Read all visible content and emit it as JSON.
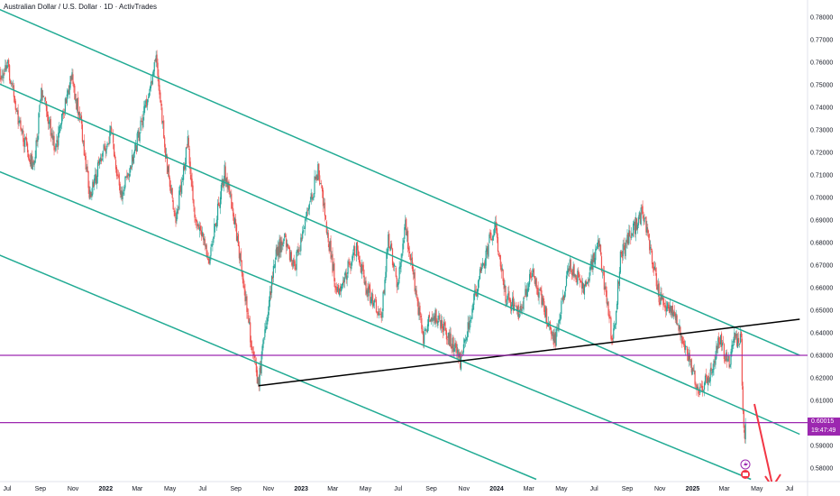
{
  "header": {
    "title": "Australian Dollar / U.S. Dollar · 1D · ActivTrades"
  },
  "colors": {
    "up": "#26a69a",
    "down": "#ef5350",
    "channel": "#22ab94",
    "horizontal": "#9c27b0",
    "trendline": "#000000",
    "arrow": "#f23645"
  },
  "last_price": {
    "price": "0.60015",
    "countdown": "19:47:49"
  },
  "chart_data": {
    "type": "candlestick",
    "title": "Australian Dollar / U.S. Dollar · 1D · ActivTrades",
    "y_axis_side": "right",
    "ylim": [
      0.575,
      0.785
    ],
    "y_ticks": [
      "0.78000",
      "0.77000",
      "0.76000",
      "0.75000",
      "0.74000",
      "0.73000",
      "0.72000",
      "0.71000",
      "0.70000",
      "0.69000",
      "0.68000",
      "0.67000",
      "0.66000",
      "0.65000",
      "0.64000",
      "0.63000",
      "0.62000",
      "0.61000",
      "0.60000",
      "0.59000",
      "0.58000"
    ],
    "x_ticks": [
      {
        "label": "Jul",
        "t": "2021-07-01",
        "bold": false
      },
      {
        "label": "Sep",
        "t": "2021-09-01",
        "bold": false
      },
      {
        "label": "Nov",
        "t": "2021-11-01",
        "bold": false
      },
      {
        "label": "2022",
        "t": "2022-01-01",
        "bold": true
      },
      {
        "label": "Mar",
        "t": "2022-03-01",
        "bold": false
      },
      {
        "label": "May",
        "t": "2022-05-01",
        "bold": false
      },
      {
        "label": "Jul",
        "t": "2022-07-01",
        "bold": false
      },
      {
        "label": "Sep",
        "t": "2022-09-01",
        "bold": false
      },
      {
        "label": "Nov",
        "t": "2022-11-01",
        "bold": false
      },
      {
        "label": "2023",
        "t": "2023-01-01",
        "bold": true
      },
      {
        "label": "Mar",
        "t": "2023-03-01",
        "bold": false
      },
      {
        "label": "May",
        "t": "2023-05-01",
        "bold": false
      },
      {
        "label": "Jul",
        "t": "2023-07-01",
        "bold": false
      },
      {
        "label": "Sep",
        "t": "2023-09-01",
        "bold": false
      },
      {
        "label": "Nov",
        "t": "2023-11-01",
        "bold": false
      },
      {
        "label": "2024",
        "t": "2024-01-01",
        "bold": true
      },
      {
        "label": "Mar",
        "t": "2024-03-01",
        "bold": false
      },
      {
        "label": "May",
        "t": "2024-05-01",
        "bold": false
      },
      {
        "label": "Jul",
        "t": "2024-07-01",
        "bold": false
      },
      {
        "label": "Sep",
        "t": "2024-09-01",
        "bold": false
      },
      {
        "label": "Nov",
        "t": "2024-11-01",
        "bold": false
      },
      {
        "label": "2025",
        "t": "2025-01-01",
        "bold": true
      },
      {
        "label": "Mar",
        "t": "2025-03-01",
        "bold": false
      },
      {
        "label": "May",
        "t": "2025-05-01",
        "bold": false
      },
      {
        "label": "Jul",
        "t": "2025-07-01",
        "bold": false
      }
    ],
    "price_path": [
      [
        "2021-05-20",
        0.77
      ],
      [
        "2021-06-10",
        0.775
      ],
      [
        "2021-06-20",
        0.75
      ],
      [
        "2021-07-02",
        0.76
      ],
      [
        "2021-07-20",
        0.735
      ],
      [
        "2021-08-20",
        0.712
      ],
      [
        "2021-09-03",
        0.747
      ],
      [
        "2021-09-30",
        0.721
      ],
      [
        "2021-10-28",
        0.755
      ],
      [
        "2021-11-15",
        0.733
      ],
      [
        "2021-12-03",
        0.7
      ],
      [
        "2021-12-20",
        0.715
      ],
      [
        "2022-01-12",
        0.73
      ],
      [
        "2022-01-28",
        0.7
      ],
      [
        "2022-02-24",
        0.72
      ],
      [
        "2022-04-05",
        0.762
      ],
      [
        "2022-04-25",
        0.715
      ],
      [
        "2022-05-12",
        0.69
      ],
      [
        "2022-06-03",
        0.725
      ],
      [
        "2022-06-16",
        0.69
      ],
      [
        "2022-07-14",
        0.673
      ],
      [
        "2022-08-11",
        0.712
      ],
      [
        "2022-09-05",
        0.68
      ],
      [
        "2022-09-28",
        0.639
      ],
      [
        "2022-10-13",
        0.617
      ],
      [
        "2022-10-28",
        0.645
      ],
      [
        "2022-11-15",
        0.676
      ],
      [
        "2022-12-01",
        0.681
      ],
      [
        "2022-12-20",
        0.67
      ],
      [
        "2023-01-10",
        0.69
      ],
      [
        "2023-02-02",
        0.713
      ],
      [
        "2023-02-28",
        0.67
      ],
      [
        "2023-03-10",
        0.658
      ],
      [
        "2023-04-14",
        0.678
      ],
      [
        "2023-05-01",
        0.66
      ],
      [
        "2023-05-31",
        0.648
      ],
      [
        "2023-06-13",
        0.683
      ],
      [
        "2023-06-29",
        0.662
      ],
      [
        "2023-07-14",
        0.688
      ],
      [
        "2023-08-17",
        0.637
      ],
      [
        "2023-09-01",
        0.648
      ],
      [
        "2023-09-20",
        0.645
      ],
      [
        "2023-10-26",
        0.627
      ],
      [
        "2023-11-30",
        0.665
      ],
      [
        "2023-12-28",
        0.688
      ],
      [
        "2024-01-18",
        0.656
      ],
      [
        "2024-02-13",
        0.648
      ],
      [
        "2024-03-08",
        0.667
      ],
      [
        "2024-04-19",
        0.636
      ],
      [
        "2024-05-16",
        0.671
      ],
      [
        "2024-06-12",
        0.66
      ],
      [
        "2024-07-10",
        0.679
      ],
      [
        "2024-08-05",
        0.635
      ],
      [
        "2024-08-20",
        0.675
      ],
      [
        "2024-09-30",
        0.694
      ],
      [
        "2024-10-31",
        0.656
      ],
      [
        "2024-11-27",
        0.649
      ],
      [
        "2025-01-12",
        0.615
      ],
      [
        "2025-01-31",
        0.62
      ],
      [
        "2025-02-20",
        0.637
      ],
      [
        "2025-03-12",
        0.625
      ],
      [
        "2025-03-18",
        0.637
      ],
      [
        "2025-04-02",
        0.637
      ],
      [
        "2025-04-04",
        0.605
      ],
      [
        "2025-04-09",
        0.592
      ],
      [
        "2025-04-10",
        0.6
      ]
    ],
    "lines": [
      {
        "kind": "channel",
        "from": [
          "2021-06-01",
          0.785
        ],
        "to": [
          "2025-07-20",
          0.63
        ]
      },
      {
        "kind": "channel",
        "from": [
          "2021-06-01",
          0.752
        ],
        "to": [
          "2025-07-20",
          0.595
        ]
      },
      {
        "kind": "channel",
        "from": [
          "2021-06-01",
          0.713
        ],
        "to": [
          "2025-04-20",
          0.575
        ]
      },
      {
        "kind": "channel",
        "from": [
          "2021-06-01",
          0.676
        ],
        "to": [
          "2024-03-15",
          0.575
        ]
      },
      {
        "kind": "trendline",
        "from": [
          "2022-10-13",
          0.6165
        ],
        "to": [
          "2025-07-20",
          0.646
        ]
      },
      {
        "kind": "horizontal",
        "y": 0.63
      },
      {
        "kind": "horizontal",
        "y": 0.60015
      }
    ]
  }
}
